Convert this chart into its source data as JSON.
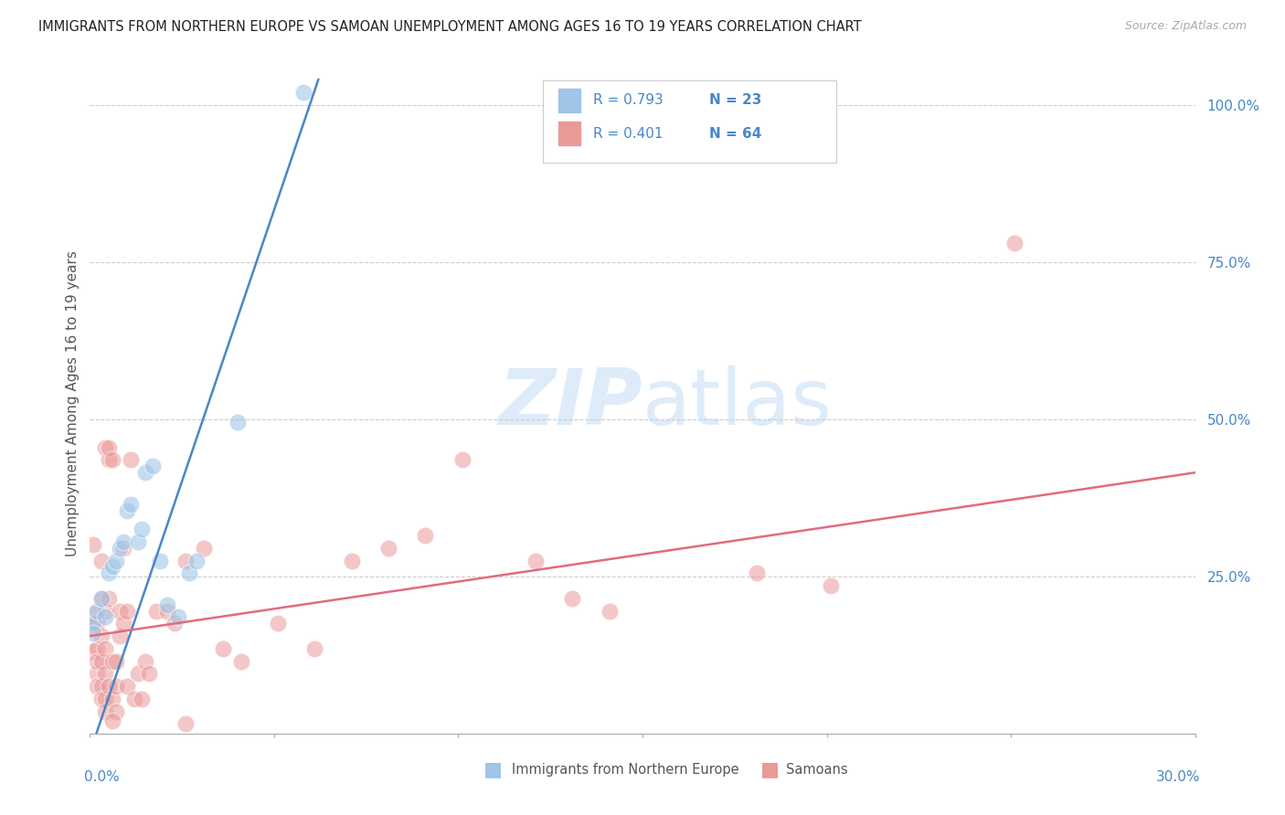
{
  "title": "IMMIGRANTS FROM NORTHERN EUROPE VS SAMOAN UNEMPLOYMENT AMONG AGES 16 TO 19 YEARS CORRELATION CHART",
  "source": "Source: ZipAtlas.com",
  "ylabel": "Unemployment Among Ages 16 to 19 years",
  "xlim": [
    0.0,
    0.3
  ],
  "ylim": [
    0.0,
    1.05
  ],
  "blue_R": "R = 0.793",
  "blue_N": "N = 23",
  "pink_R": "R = 0.401",
  "pink_N": "N = 64",
  "blue_color": "#9fc5e8",
  "pink_color": "#ea9999",
  "line_blue_color": "#4a86c8",
  "line_pink_color": "#e06c7e",
  "text_color": "#4a86c8",
  "watermark_color": "#d0e4f7",
  "blue_line": [
    [
      0.0,
      -0.03
    ],
    [
      0.062,
      1.04
    ]
  ],
  "pink_line": [
    [
      0.0,
      0.155
    ],
    [
      0.3,
      0.415
    ]
  ],
  "blue_scatter": [
    [
      0.001,
      0.175
    ],
    [
      0.002,
      0.195
    ],
    [
      0.003,
      0.215
    ],
    [
      0.004,
      0.185
    ],
    [
      0.005,
      0.255
    ],
    [
      0.006,
      0.265
    ],
    [
      0.007,
      0.275
    ],
    [
      0.008,
      0.295
    ],
    [
      0.009,
      0.305
    ],
    [
      0.01,
      0.355
    ],
    [
      0.011,
      0.365
    ],
    [
      0.013,
      0.305
    ],
    [
      0.014,
      0.325
    ],
    [
      0.015,
      0.415
    ],
    [
      0.017,
      0.425
    ],
    [
      0.019,
      0.275
    ],
    [
      0.021,
      0.205
    ],
    [
      0.024,
      0.185
    ],
    [
      0.027,
      0.255
    ],
    [
      0.029,
      0.275
    ],
    [
      0.04,
      0.495
    ],
    [
      0.058,
      1.02
    ],
    [
      0.001,
      0.16
    ]
  ],
  "pink_scatter": [
    [
      0.001,
      0.17
    ],
    [
      0.001,
      0.13
    ],
    [
      0.001,
      0.19
    ],
    [
      0.001,
      0.3
    ],
    [
      0.002,
      0.175
    ],
    [
      0.002,
      0.095
    ],
    [
      0.002,
      0.135
    ],
    [
      0.002,
      0.075
    ],
    [
      0.002,
      0.115
    ],
    [
      0.003,
      0.215
    ],
    [
      0.003,
      0.155
    ],
    [
      0.003,
      0.115
    ],
    [
      0.003,
      0.075
    ],
    [
      0.003,
      0.055
    ],
    [
      0.003,
      0.275
    ],
    [
      0.004,
      0.195
    ],
    [
      0.004,
      0.135
    ],
    [
      0.004,
      0.095
    ],
    [
      0.004,
      0.055
    ],
    [
      0.004,
      0.035
    ],
    [
      0.004,
      0.455
    ],
    [
      0.005,
      0.435
    ],
    [
      0.005,
      0.455
    ],
    [
      0.005,
      0.215
    ],
    [
      0.005,
      0.075
    ],
    [
      0.006,
      0.435
    ],
    [
      0.006,
      0.115
    ],
    [
      0.006,
      0.055
    ],
    [
      0.007,
      0.115
    ],
    [
      0.007,
      0.075
    ],
    [
      0.007,
      0.035
    ],
    [
      0.008,
      0.195
    ],
    [
      0.008,
      0.155
    ],
    [
      0.009,
      0.295
    ],
    [
      0.009,
      0.175
    ],
    [
      0.01,
      0.195
    ],
    [
      0.01,
      0.075
    ],
    [
      0.011,
      0.435
    ],
    [
      0.012,
      0.055
    ],
    [
      0.013,
      0.095
    ],
    [
      0.014,
      0.055
    ],
    [
      0.015,
      0.115
    ],
    [
      0.016,
      0.095
    ],
    [
      0.018,
      0.195
    ],
    [
      0.021,
      0.195
    ],
    [
      0.023,
      0.175
    ],
    [
      0.026,
      0.275
    ],
    [
      0.031,
      0.295
    ],
    [
      0.036,
      0.135
    ],
    [
      0.041,
      0.115
    ],
    [
      0.051,
      0.175
    ],
    [
      0.061,
      0.135
    ],
    [
      0.071,
      0.275
    ],
    [
      0.081,
      0.295
    ],
    [
      0.091,
      0.315
    ],
    [
      0.101,
      0.435
    ],
    [
      0.121,
      0.275
    ],
    [
      0.131,
      0.215
    ],
    [
      0.141,
      0.195
    ],
    [
      0.181,
      0.255
    ],
    [
      0.201,
      0.235
    ],
    [
      0.251,
      0.78
    ],
    [
      0.026,
      0.015
    ],
    [
      0.006,
      0.02
    ]
  ],
  "legend_blue_label": "Immigrants from Northern Europe",
  "legend_pink_label": "Samoans"
}
